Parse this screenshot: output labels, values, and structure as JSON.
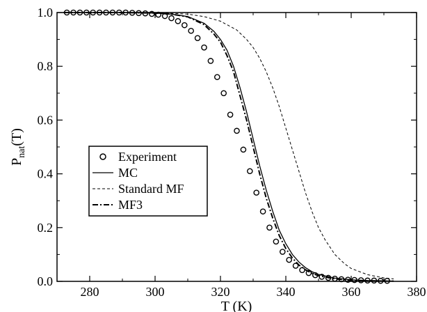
{
  "chart_data": {
    "type": "line",
    "xlabel": "T (K)",
    "ylabel_main": "P",
    "ylabel_sub": "nat",
    "ylabel_tail": "(T)",
    "xlim": [
      270,
      380
    ],
    "ylim": [
      0.0,
      1.0
    ],
    "x_ticks": [
      280,
      300,
      320,
      340,
      360,
      380
    ],
    "y_ticks": [
      0.0,
      0.2,
      0.4,
      0.6,
      0.8,
      1.0
    ],
    "x_tick_labels": [
      "280",
      "300",
      "320",
      "340",
      "360",
      "380"
    ],
    "y_tick_labels": [
      "0.0",
      "0.2",
      "0.4",
      "0.6",
      "0.8",
      "1.0"
    ],
    "legend_position": "middle-left",
    "grid": false,
    "series": [
      {
        "name": "Experiment",
        "style": "open-circles",
        "x": [
          273,
          275,
          277,
          279,
          281,
          283,
          285,
          287,
          289,
          291,
          293,
          295,
          297,
          299,
          301,
          303,
          305,
          307,
          309,
          311,
          313,
          315,
          317,
          319,
          321,
          323,
          325,
          327,
          329,
          331,
          333,
          335,
          337,
          339,
          341,
          343,
          345,
          347,
          349,
          351,
          353,
          355,
          357,
          359,
          361,
          363,
          365,
          367,
          369,
          371
        ],
        "y": [
          1.0,
          1.0,
          1.0,
          1.0,
          1.0,
          1.0,
          1.0,
          1.0,
          1.0,
          1.0,
          0.999,
          0.998,
          0.997,
          0.995,
          0.992,
          0.987,
          0.979,
          0.968,
          0.953,
          0.932,
          0.905,
          0.87,
          0.82,
          0.76,
          0.7,
          0.62,
          0.56,
          0.49,
          0.41,
          0.33,
          0.26,
          0.2,
          0.148,
          0.11,
          0.08,
          0.058,
          0.042,
          0.031,
          0.023,
          0.017,
          0.013,
          0.01,
          0.008,
          0.006,
          0.005,
          0.004,
          0.003,
          0.003,
          0.002,
          0.002
        ]
      },
      {
        "name": "MC",
        "style": "solid",
        "x": [
          272,
          280,
          290,
          300,
          305,
          310,
          315,
          318,
          320,
          322,
          324,
          326,
          328,
          330,
          332,
          334,
          336,
          338,
          340,
          342,
          344,
          346,
          348,
          350,
          355,
          360,
          365,
          370,
          373
        ],
        "y": [
          1.0,
          1.0,
          1.0,
          0.998,
          0.994,
          0.985,
          0.96,
          0.93,
          0.9,
          0.86,
          0.8,
          0.72,
          0.63,
          0.53,
          0.43,
          0.34,
          0.26,
          0.19,
          0.14,
          0.1,
          0.072,
          0.051,
          0.036,
          0.026,
          0.012,
          0.006,
          0.003,
          0.002,
          0.001
        ]
      },
      {
        "name": "Standard MF",
        "style": "dashed",
        "x": [
          272,
          280,
          290,
          300,
          305,
          310,
          315,
          320,
          325,
          328,
          330,
          332,
          334,
          336,
          338,
          340,
          342,
          344,
          346,
          348,
          350,
          352,
          355,
          358,
          360,
          365,
          370,
          373
        ],
        "y": [
          1.0,
          1.0,
          1.0,
          0.999,
          0.997,
          0.994,
          0.985,
          0.968,
          0.935,
          0.9,
          0.87,
          0.83,
          0.78,
          0.72,
          0.65,
          0.57,
          0.49,
          0.41,
          0.33,
          0.26,
          0.2,
          0.155,
          0.1,
          0.065,
          0.048,
          0.025,
          0.013,
          0.009
        ]
      },
      {
        "name": "MF3",
        "style": "dash-dot",
        "x": [
          272,
          280,
          290,
          300,
          305,
          310,
          315,
          318,
          320,
          322,
          324,
          326,
          328,
          330,
          332,
          334,
          336,
          338,
          340,
          342,
          344,
          346,
          348,
          350,
          355,
          360,
          365,
          370,
          373
        ],
        "y": [
          1.0,
          1.0,
          1.0,
          0.998,
          0.994,
          0.984,
          0.955,
          0.92,
          0.89,
          0.84,
          0.78,
          0.69,
          0.6,
          0.5,
          0.4,
          0.31,
          0.235,
          0.17,
          0.122,
          0.087,
          0.061,
          0.043,
          0.03,
          0.021,
          0.009,
          0.004,
          0.002,
          0.001,
          0.001
        ]
      }
    ]
  }
}
